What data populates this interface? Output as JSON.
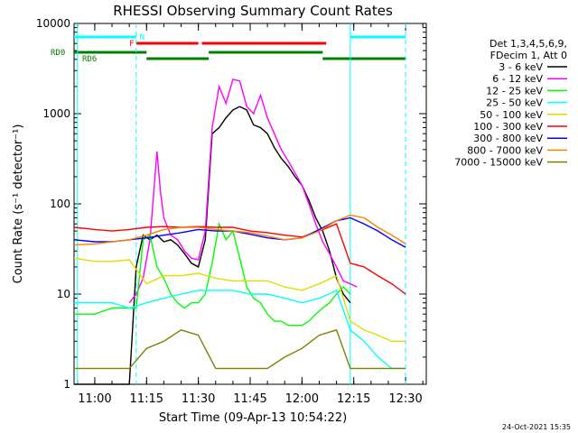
{
  "chart_data": {
    "type": "line",
    "title": "RHESSI Observing Summary Count Rates",
    "xlabel": "Start Time (09-Apr-13 10:54:22)",
    "ylabel": "Count Rate (s⁻¹ detector⁻¹)",
    "yscale": "log",
    "ylim": [
      1,
      10000
    ],
    "xlim_minutes": [
      10.9,
      12.6
    ],
    "x_ticks": [
      "11:00",
      "11:15",
      "11:30",
      "11:45",
      "12:00",
      "12:15",
      "12:30"
    ],
    "y_ticks": [
      "1",
      "10",
      "100",
      "1000",
      "10000"
    ],
    "footer_date": "24-Oct-2021 15:35",
    "legend": {
      "header": [
        "Det 1,3,4,5,6,9,",
        "FDecim 1, Att 0"
      ]
    },
    "flags": {
      "N": {
        "label": "N",
        "color": "#00ffff"
      },
      "F": {
        "label": "F",
        "color": "#ff0000"
      },
      "RD0": {
        "label": "RD0",
        "color": "#008000"
      },
      "RD6": {
        "label": "RD6",
        "color": "#008000"
      }
    },
    "series": [
      {
        "name": "3 - 6 keV",
        "color": "#000000",
        "x": [
          "10:54",
          "11:00",
          "11:05",
          "11:10",
          "11:12",
          "11:14",
          "11:16",
          "11:18",
          "11:20",
          "11:22",
          "11:24",
          "11:26",
          "11:28",
          "11:30",
          "11:32",
          "11:34",
          "11:36",
          "11:38",
          "11:40",
          "11:42",
          "11:44",
          "11:46",
          "11:48",
          "11:50",
          "11:52",
          "11:54",
          "11:56",
          "11:58",
          "12:00",
          "12:02",
          "12:04",
          "12:06",
          "12:08",
          "12:10",
          "12:12",
          "12:14"
        ],
        "y": [
          1,
          1,
          1,
          1,
          20,
          45,
          40,
          45,
          38,
          40,
          35,
          28,
          22,
          20,
          40,
          600,
          700,
          900,
          1100,
          1200,
          1100,
          750,
          700,
          600,
          420,
          320,
          260,
          200,
          160,
          110,
          70,
          50,
          30,
          15,
          10,
          8
        ]
      },
      {
        "name": "6 - 12 keV",
        "color": "#ff00ff",
        "x": [
          "11:10",
          "11:12",
          "11:14",
          "11:16",
          "11:18",
          "11:19",
          "11:20",
          "11:22",
          "11:24",
          "11:26",
          "11:28",
          "11:30",
          "11:32",
          "11:34",
          "11:36",
          "11:38",
          "11:40",
          "11:42",
          "11:44",
          "11:46",
          "11:48",
          "11:50",
          "11:52",
          "11:54",
          "11:56",
          "11:58",
          "12:00",
          "12:02",
          "12:04",
          "12:06",
          "12:08",
          "12:10",
          "12:12",
          "12:14",
          "12:16"
        ],
        "y": [
          8,
          10,
          15,
          40,
          380,
          140,
          70,
          45,
          40,
          30,
          25,
          24,
          50,
          700,
          2000,
          1300,
          2400,
          2300,
          1200,
          1000,
          1600,
          900,
          600,
          400,
          300,
          220,
          160,
          100,
          60,
          38,
          28,
          20,
          14,
          13,
          12
        ]
      },
      {
        "name": "12 - 25 keV",
        "color": "#00ff00",
        "x": [
          "10:54",
          "11:00",
          "11:05",
          "11:10",
          "11:12",
          "11:14",
          "11:16",
          "11:18",
          "11:20",
          "11:22",
          "11:24",
          "11:26",
          "11:28",
          "11:30",
          "11:32",
          "11:34",
          "11:36",
          "11:38",
          "11:40",
          "11:42",
          "11:44",
          "11:46",
          "11:48",
          "11:50",
          "11:52",
          "11:54",
          "11:56",
          "11:58",
          "12:00",
          "12:02",
          "12:04",
          "12:06",
          "12:08",
          "12:10",
          "12:12",
          "12:14"
        ],
        "y": [
          6,
          6,
          7,
          7,
          7,
          40,
          45,
          20,
          15,
          10,
          8,
          7,
          8,
          8,
          10,
          22,
          60,
          40,
          50,
          25,
          12,
          9,
          8,
          6,
          5,
          5,
          4.5,
          4.5,
          4.5,
          5,
          6,
          7,
          8,
          10,
          12,
          10
        ]
      },
      {
        "name": "25 - 50 keV",
        "color": "#00ffff",
        "x": [
          "10:54",
          "11:00",
          "11:05",
          "11:10",
          "11:15",
          "11:20",
          "11:25",
          "11:30",
          "11:35",
          "11:40",
          "11:45",
          "11:50",
          "11:55",
          "12:00",
          "12:05",
          "12:10",
          "12:14",
          "12:18",
          "12:22",
          "12:26",
          "12:30"
        ],
        "y": [
          8,
          8,
          8,
          7,
          8,
          9,
          10,
          11,
          11,
          11,
          10,
          10,
          9,
          8,
          9,
          11,
          4,
          3,
          2,
          1.5,
          1.5
        ]
      },
      {
        "name": "50 - 100 keV",
        "color": "#dddd00",
        "x": [
          "10:54",
          "11:00",
          "11:05",
          "11:10",
          "11:15",
          "11:20",
          "11:25",
          "11:30",
          "11:35",
          "11:40",
          "11:45",
          "11:50",
          "11:55",
          "12:00",
          "12:05",
          "12:10",
          "12:14",
          "12:18",
          "12:22",
          "12:26",
          "12:30"
        ],
        "y": [
          25,
          23,
          23,
          24,
          13,
          16,
          16,
          17,
          15,
          14,
          14,
          14,
          12,
          11,
          13,
          16,
          5,
          4,
          3.5,
          3,
          3
        ]
      },
      {
        "name": "100 - 300 keV",
        "color": "#ff0000",
        "x": [
          "10:54",
          "11:00",
          "11:05",
          "11:10",
          "11:15",
          "11:20",
          "11:25",
          "11:30",
          "11:35",
          "11:40",
          "11:45",
          "11:50",
          "11:55",
          "12:00",
          "12:05",
          "12:10",
          "12:14",
          "12:18",
          "12:22",
          "12:26",
          "12:30"
        ],
        "y": [
          55,
          52,
          50,
          52,
          55,
          56,
          55,
          56,
          55,
          55,
          50,
          48,
          45,
          43,
          50,
          60,
          22,
          20,
          16,
          13,
          10
        ]
      },
      {
        "name": "300 - 800 keV",
        "color": "#0000ff",
        "x": [
          "10:54",
          "11:00",
          "11:05",
          "11:10",
          "11:15",
          "11:20",
          "11:25",
          "11:30",
          "11:35",
          "11:40",
          "11:45",
          "11:50",
          "11:55",
          "12:00",
          "12:05",
          "12:10",
          "12:14",
          "12:18",
          "12:22",
          "12:26",
          "12:30"
        ],
        "y": [
          40,
          38,
          38,
          40,
          42,
          45,
          48,
          52,
          50,
          50,
          46,
          42,
          40,
          42,
          52,
          65,
          70,
          60,
          50,
          40,
          33
        ]
      },
      {
        "name": "800 - 7000 keV",
        "color": "#ff8000",
        "x": [
          "10:54",
          "11:00",
          "11:05",
          "11:10",
          "11:15",
          "11:20",
          "11:25",
          "11:30",
          "11:35",
          "11:40",
          "11:45",
          "11:50",
          "11:55",
          "12:00",
          "12:05",
          "12:10",
          "12:14",
          "12:18",
          "12:22",
          "12:26",
          "12:30"
        ],
        "y": [
          35,
          36,
          38,
          40,
          45,
          52,
          55,
          55,
          52,
          50,
          48,
          44,
          40,
          42,
          50,
          65,
          75,
          70,
          55,
          45,
          36
        ]
      },
      {
        "name": "7000 - 15000 keV",
        "color": "#808000",
        "x": [
          "10:54",
          "11:00",
          "11:05",
          "11:10",
          "11:15",
          "11:20",
          "11:25",
          "11:30",
          "11:35",
          "11:40",
          "11:45",
          "11:50",
          "11:55",
          "12:00",
          "12:05",
          "12:10",
          "12:14",
          "12:18",
          "12:22",
          "12:26",
          "12:30"
        ],
        "y": [
          1.5,
          1.5,
          1.5,
          1.5,
          2.5,
          3,
          4,
          3.5,
          1.5,
          1.5,
          1.5,
          1.5,
          2,
          2.5,
          3.5,
          4,
          1.5,
          1.5,
          1.5,
          1.5,
          1.5
        ]
      }
    ]
  }
}
